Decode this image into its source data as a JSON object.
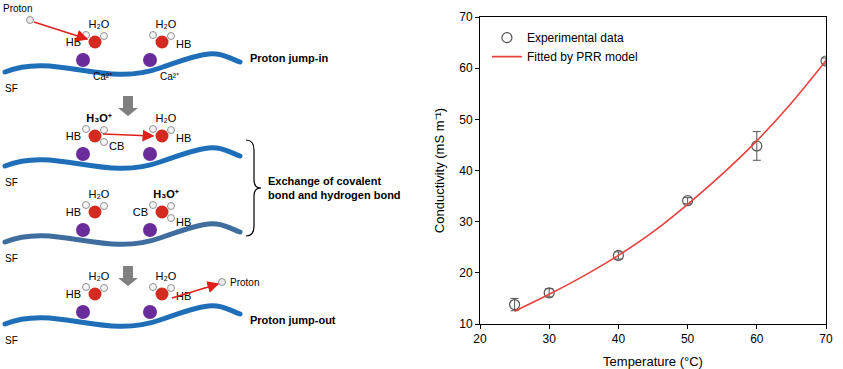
{
  "chart_data": {
    "type": "scatter",
    "x_label": "Temperature (°C)",
    "y_label": "Conductivity (mS m⁻¹)",
    "xlim": [
      20,
      70
    ],
    "xticks": [
      20,
      30,
      40,
      50,
      60,
      70
    ],
    "ylim": [
      10,
      70
    ],
    "yticks": [
      10,
      20,
      30,
      40,
      50,
      60,
      70
    ],
    "grid": false,
    "legend": "top left",
    "series": [
      {
        "name": "Experimental data",
        "type": "scatter",
        "marker": "circle-open",
        "color": "#555555",
        "x": [
          25,
          30,
          40,
          50,
          60,
          70
        ],
        "values": [
          13.8,
          16.1,
          23.4,
          34.1,
          44.8,
          61.4
        ],
        "errors": [
          1.2,
          0.8,
          0.7,
          0.6,
          2.8,
          0.6
        ]
      },
      {
        "name": "Fitted by PRR model",
        "type": "line",
        "line_style": "solid",
        "color": "#e8413d",
        "x": [
          25,
          30,
          35,
          40,
          45,
          50,
          55,
          60,
          65,
          70
        ],
        "values": [
          12.5,
          15.8,
          19.4,
          23.4,
          28.0,
          33.4,
          39.3,
          45.8,
          53.2,
          61.5
        ]
      }
    ]
  },
  "diagram": {
    "panels": [
      {
        "proton": "Proton",
        "surface": "SF",
        "caption": "Proton jump-in",
        "molecules": [
          {
            "formula": "H₂O",
            "bonds": [
              "HB"
            ],
            "ion": "Ca²⁺"
          },
          {
            "formula": "H₂O",
            "bonds": [
              "HB"
            ],
            "ion": "Ca²⁺"
          }
        ]
      },
      {
        "surface": "SF",
        "molecules": [
          {
            "formula": "H₃O⁺",
            "bonds": [
              "HB",
              "CB"
            ]
          },
          {
            "formula": "H₂O",
            "bonds": [
              "HB"
            ]
          }
        ]
      },
      {
        "surface": "SF",
        "molecules": [
          {
            "formula": "H₂O",
            "bonds": [
              "HB"
            ]
          },
          {
            "formula": "H₃O⁺",
            "bonds": [
              "CB",
              "HB"
            ]
          }
        ]
      },
      {
        "proton": "Proton",
        "surface": "SF",
        "caption": "Proton jump-out",
        "molecules": [
          {
            "formula": "H₂O",
            "bonds": [
              "HB"
            ]
          },
          {
            "formula": "H₂O",
            "bonds": [
              "HB"
            ]
          }
        ]
      }
    ],
    "brace_caption": [
      "Exchange of covalent",
      "bond and hydrogen bond"
    ]
  }
}
